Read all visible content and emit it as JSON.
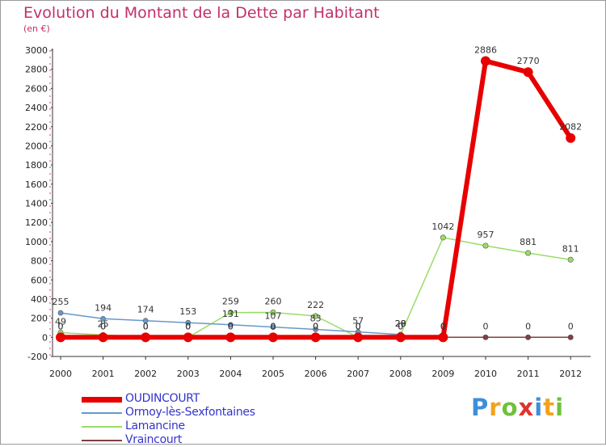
{
  "header": {
    "title": "Evolution du Montant de la Dette par Habitant",
    "subtitle": "(en €)"
  },
  "logo": {
    "letters": [
      "P",
      "r",
      "o",
      "x",
      "i",
      "t",
      "i"
    ],
    "colors": [
      "#3d8fd8",
      "#f2a21e",
      "#6fc13b",
      "#e0342a",
      "#3d8fd8",
      "#f2a21e",
      "#6fc13b"
    ]
  },
  "chart_data": {
    "type": "line",
    "title": "Evolution du Montant de la Dette par Habitant",
    "subtitle": "(en €)",
    "xlabel": "",
    "ylabel": "",
    "x": [
      "2000",
      "2001",
      "2002",
      "2003",
      "2004",
      "2005",
      "2006",
      "2007",
      "2008",
      "2009",
      "2010",
      "2011",
      "2012"
    ],
    "ylim": [
      -200,
      3000
    ],
    "yticks": [
      -200,
      0,
      200,
      400,
      600,
      800,
      1000,
      1200,
      1400,
      1600,
      1800,
      2000,
      2200,
      2400,
      2600,
      2800,
      3000
    ],
    "grid": false,
    "legend_position": "bottom-left",
    "series": [
      {
        "name": "OUDINCOURT",
        "color": "#e80000",
        "values": [
          0,
          0,
          0,
          0,
          0,
          0,
          0,
          0,
          0,
          0,
          2886,
          2770,
          2082
        ],
        "labels": [
          "0",
          "0",
          "0",
          "0",
          "0",
          "0",
          "0",
          "0",
          "0",
          "0",
          "2886",
          "2770",
          "2082"
        ]
      },
      {
        "name": "Ormoy-lès-Sexfontaines",
        "color": "#6699cc",
        "values": [
          255,
          194,
          174,
          153,
          131,
          107,
          83,
          57,
          29,
          null,
          null,
          null,
          null
        ],
        "labels": [
          "255",
          "194",
          "174",
          "153",
          "131",
          "107",
          "83",
          "57",
          "29",
          "",
          "",
          "",
          ""
        ]
      },
      {
        "name": "Lamancine",
        "color": "#99dd66",
        "values": [
          49,
          25,
          0,
          0,
          259,
          260,
          222,
          0,
          28,
          1042,
          957,
          881,
          811
        ],
        "labels": [
          "49",
          "25",
          "0",
          "0",
          "259",
          "260",
          "222",
          "0",
          "28",
          "1042",
          "957",
          "881",
          "811"
        ]
      },
      {
        "name": "Vraincourt",
        "color": "#804040",
        "values": [
          0,
          0,
          0,
          0,
          0,
          0,
          0,
          0,
          0,
          0,
          0,
          0,
          0
        ],
        "labels": [
          "0",
          "0",
          "0",
          "0",
          "0",
          "0",
          "0",
          "0",
          "0",
          "0",
          "0",
          "0",
          "0"
        ]
      }
    ]
  }
}
